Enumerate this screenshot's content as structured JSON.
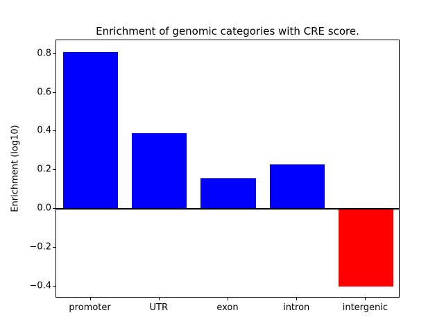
{
  "chart_data": {
    "type": "bar",
    "title": "Enrichment of genomic categories with CRE score.",
    "xlabel": "",
    "ylabel": "Enrichment (log10)",
    "categories": [
      "promoter",
      "UTR",
      "exon",
      "intron",
      "intergenic"
    ],
    "values": [
      0.81,
      0.39,
      0.16,
      0.23,
      -0.4
    ],
    "bar_colors": [
      "#0000ff",
      "#0000ff",
      "#0000ff",
      "#0000ff",
      "#ff0000"
    ],
    "ylim": [
      -0.4605,
      0.8705
    ],
    "yticks": [
      0.8,
      0.6,
      0.4,
      0.2,
      0.0,
      -0.2,
      -0.4
    ],
    "ytick_labels": [
      "0.8",
      "0.6",
      "0.4",
      "0.2",
      "0.0",
      "−0.2",
      "−0.4"
    ],
    "zero_line": true,
    "grid": false,
    "legend": null
  },
  "colors": {
    "bar_positive": "#0000ff",
    "bar_negative": "#ff0000",
    "axis": "#000000",
    "background": "#ffffff"
  }
}
